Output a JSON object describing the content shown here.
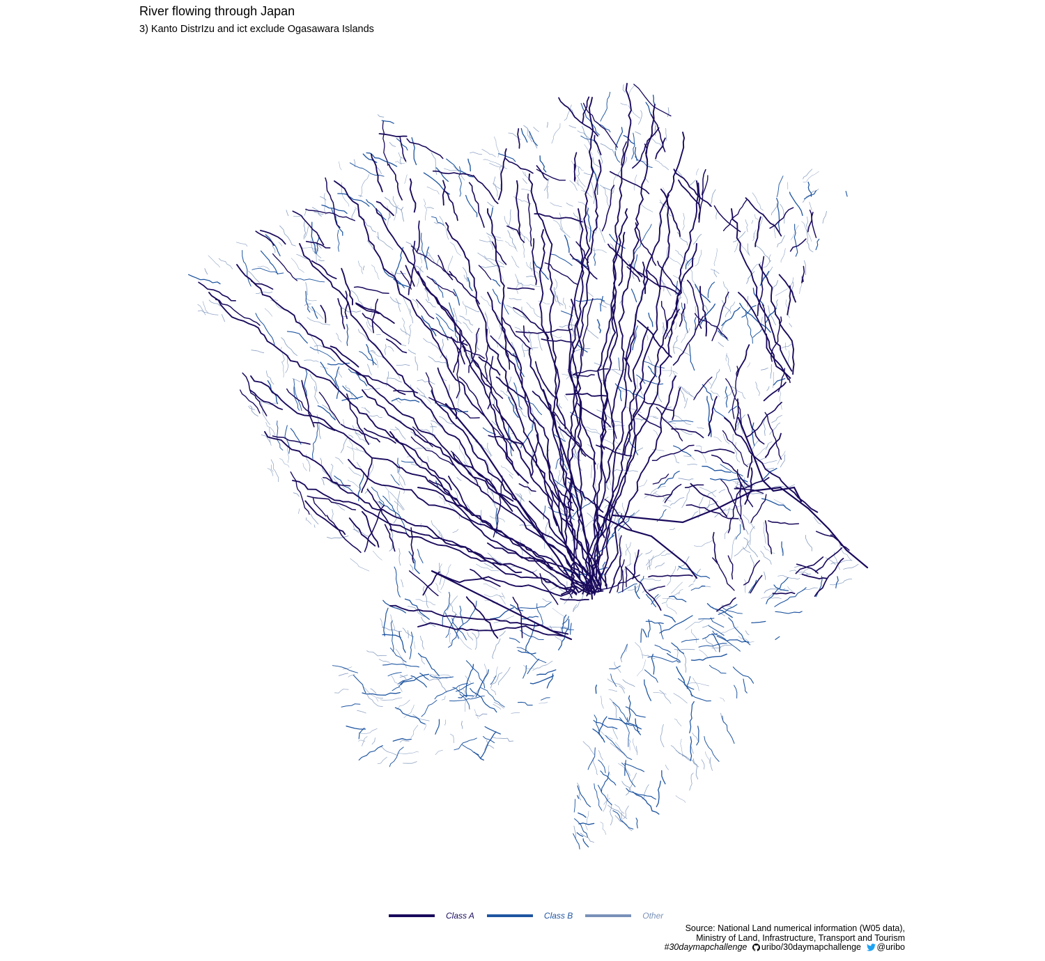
{
  "header": {
    "title": "River flowing through Japan",
    "subtitle": "3) Kanto DistrIzu and ict exclude Ogasawara Islands"
  },
  "legend": {
    "items": [
      {
        "label": "Class A",
        "color": "#1a0a5c"
      },
      {
        "label": "Class B",
        "color": "#1f55a0"
      },
      {
        "label": "Other",
        "color": "#7891b8"
      }
    ]
  },
  "caption": {
    "source_line1": "Source: National Land numerical information (W05 data),",
    "source_line2": "Ministry of Land, Infrastructure, Transport and Tourism",
    "hashtag": "#30daymapchallenge",
    "github_icon": "github-icon",
    "github": "uribo/30daymapchallenge",
    "twitter_icon": "twitter-icon",
    "twitter": "@uribo"
  },
  "colors": {
    "class_a": "#1a0a5c",
    "class_b": "#1f55a0",
    "other": "#7891b8",
    "twitter": "#1da1f2"
  }
}
